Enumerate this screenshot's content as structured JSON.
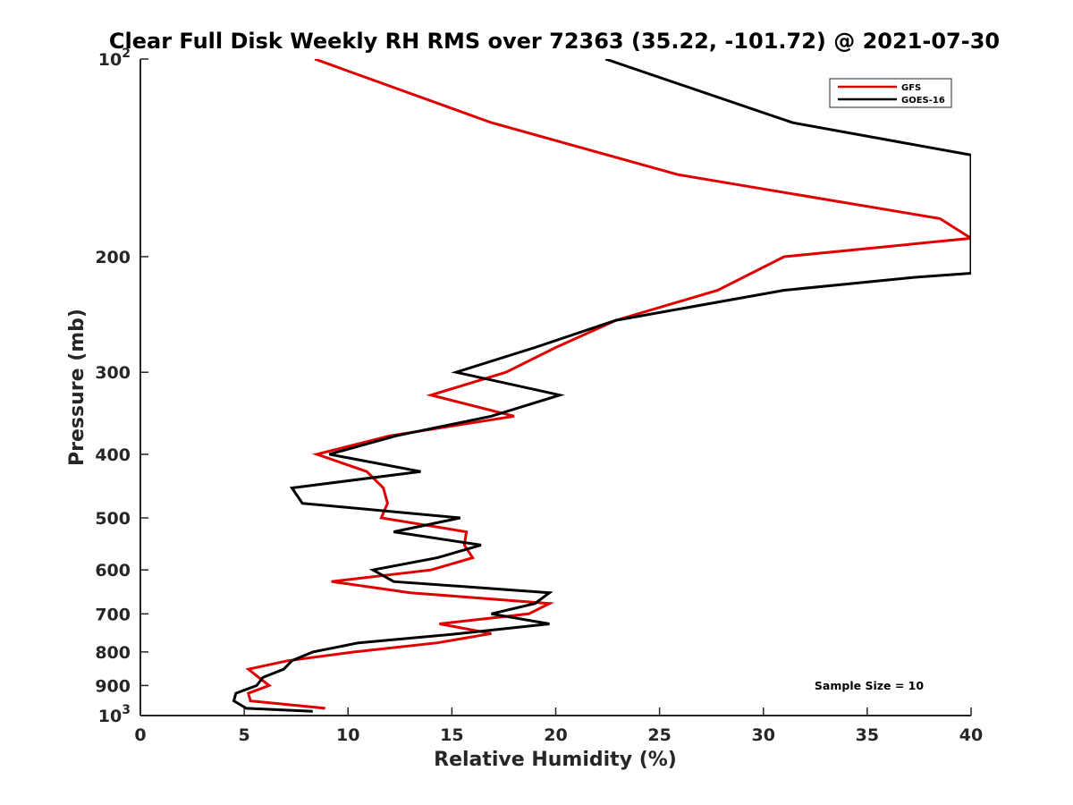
{
  "chart_data": {
    "type": "line",
    "title": "Clear Full Disk Weekly RH RMS over 72363 (35.22, -101.72) @ 2021-07-30",
    "xlabel": "Relative Humidity (%)",
    "ylabel": "Pressure (mb)",
    "xlim": [
      0,
      40
    ],
    "ylim": [
      100,
      1000
    ],
    "yscale": "log",
    "y_reversed": true,
    "x_ticks": [
      0,
      5,
      10,
      15,
      20,
      25,
      30,
      35,
      40
    ],
    "x_tick_labels": [
      "0",
      "5",
      "10",
      "15",
      "20",
      "25",
      "30",
      "35",
      "40"
    ],
    "y_ticks": [
      100,
      200,
      300,
      400,
      500,
      600,
      700,
      800,
      900,
      1000
    ],
    "y_tick_labels": [
      {
        "base": "10",
        "exp": "2"
      },
      {
        "base": "200",
        "exp": ""
      },
      {
        "base": "300",
        "exp": ""
      },
      {
        "base": "400",
        "exp": ""
      },
      {
        "base": "500",
        "exp": ""
      },
      {
        "base": "600",
        "exp": ""
      },
      {
        "base": "700",
        "exp": ""
      },
      {
        "base": "800",
        "exp": ""
      },
      {
        "base": "900",
        "exp": ""
      },
      {
        "base": "10",
        "exp": "3"
      }
    ],
    "legend_position": "top-right",
    "series": [
      {
        "name": "GFS",
        "color": "#e00000",
        "points": [
          {
            "x": 8.4,
            "y": 100
          },
          {
            "x": 16.9,
            "y": 125
          },
          {
            "x": 25.9,
            "y": 150
          },
          {
            "x": 38.5,
            "y": 175
          },
          {
            "x": 40.0,
            "y": 187.5
          },
          {
            "x": 31.0,
            "y": 200
          },
          {
            "x": 27.8,
            "y": 225
          },
          {
            "x": 22.9,
            "y": 250
          },
          {
            "x": 20.0,
            "y": 275
          },
          {
            "x": 17.6,
            "y": 300
          },
          {
            "x": 14.0,
            "y": 325
          },
          {
            "x": 18.0,
            "y": 350
          },
          {
            "x": 12.0,
            "y": 375
          },
          {
            "x": 8.5,
            "y": 400
          },
          {
            "x": 10.9,
            "y": 425
          },
          {
            "x": 11.7,
            "y": 450
          },
          {
            "x": 11.9,
            "y": 475
          },
          {
            "x": 11.6,
            "y": 500
          },
          {
            "x": 15.7,
            "y": 525
          },
          {
            "x": 15.6,
            "y": 550
          },
          {
            "x": 16.0,
            "y": 575
          },
          {
            "x": 14.0,
            "y": 600
          },
          {
            "x": 9.2,
            "y": 625
          },
          {
            "x": 13.0,
            "y": 650
          },
          {
            "x": 19.7,
            "y": 675
          },
          {
            "x": 18.7,
            "y": 700
          },
          {
            "x": 14.4,
            "y": 725
          },
          {
            "x": 16.9,
            "y": 750
          },
          {
            "x": 14.3,
            "y": 775
          },
          {
            "x": 10.3,
            "y": 800
          },
          {
            "x": 7.1,
            "y": 825
          },
          {
            "x": 5.2,
            "y": 850
          },
          {
            "x": 5.7,
            "y": 875
          },
          {
            "x": 6.2,
            "y": 900
          },
          {
            "x": 5.2,
            "y": 925
          },
          {
            "x": 5.3,
            "y": 950
          },
          {
            "x": 8.9,
            "y": 975
          }
        ]
      },
      {
        "name": "GOES-16",
        "color": "#000000",
        "points": [
          {
            "x": 22.4,
            "y": 100
          },
          {
            "x": 31.4,
            "y": 125
          },
          {
            "x": 40.0,
            "y": 140
          },
          {
            "x": 40.0,
            "y": 212
          },
          {
            "x": 37.3,
            "y": 215
          },
          {
            "x": 31.0,
            "y": 225
          },
          {
            "x": 22.9,
            "y": 250
          },
          {
            "x": 19.0,
            "y": 275
          },
          {
            "x": 15.2,
            "y": 300
          },
          {
            "x": 20.2,
            "y": 325
          },
          {
            "x": 16.9,
            "y": 350
          },
          {
            "x": 12.3,
            "y": 375
          },
          {
            "x": 9.1,
            "y": 400
          },
          {
            "x": 13.5,
            "y": 425
          },
          {
            "x": 7.3,
            "y": 450
          },
          {
            "x": 7.8,
            "y": 475
          },
          {
            "x": 15.4,
            "y": 500
          },
          {
            "x": 12.2,
            "y": 525
          },
          {
            "x": 16.4,
            "y": 550
          },
          {
            "x": 14.3,
            "y": 575
          },
          {
            "x": 11.2,
            "y": 600
          },
          {
            "x": 12.2,
            "y": 625
          },
          {
            "x": 19.7,
            "y": 650
          },
          {
            "x": 19.0,
            "y": 675
          },
          {
            "x": 16.9,
            "y": 700
          },
          {
            "x": 19.7,
            "y": 725
          },
          {
            "x": 15.4,
            "y": 750
          },
          {
            "x": 10.5,
            "y": 775
          },
          {
            "x": 8.3,
            "y": 800
          },
          {
            "x": 7.3,
            "y": 825
          },
          {
            "x": 6.9,
            "y": 850
          },
          {
            "x": 5.9,
            "y": 875
          },
          {
            "x": 5.6,
            "y": 900
          },
          {
            "x": 4.6,
            "y": 925
          },
          {
            "x": 4.5,
            "y": 950
          },
          {
            "x": 5.1,
            "y": 975
          },
          {
            "x": 8.3,
            "y": 985
          }
        ]
      }
    ],
    "annotation": "Sample Size = 10"
  }
}
